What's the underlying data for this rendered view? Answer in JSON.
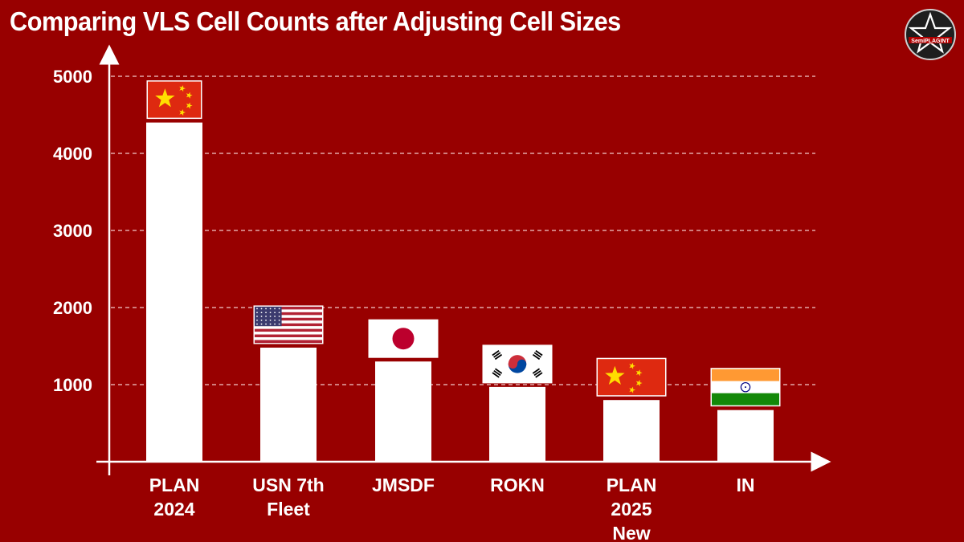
{
  "header": {
    "title": "Comparing VLS Cell Counts after Adjusting Cell Sizes"
  },
  "logo": {
    "text": "SemiPLAGINT"
  },
  "colors": {
    "background": "#980000",
    "bar": "#ffffff",
    "grid": "#f2c9c9"
  },
  "chart_data": {
    "type": "bar",
    "title": "Comparing VLS Cell Counts after Adjusting Cell Sizes",
    "xlabel": "",
    "ylabel": "",
    "ylim": [
      0,
      5000
    ],
    "yticks": [
      1000,
      2000,
      3000,
      4000,
      5000
    ],
    "grid": true,
    "categories": [
      {
        "label_lines": [
          "PLAN",
          "2024"
        ],
        "flag": "china"
      },
      {
        "label_lines": [
          "USN 7th",
          "Fleet"
        ],
        "flag": "usa"
      },
      {
        "label_lines": [
          "JMSDF"
        ],
        "flag": "japan"
      },
      {
        "label_lines": [
          "ROKN"
        ],
        "flag": "korea"
      },
      {
        "label_lines": [
          "PLAN",
          "2025",
          "New"
        ],
        "flag": "china"
      },
      {
        "label_lines": [
          "IN"
        ],
        "flag": "india"
      }
    ],
    "values": [
      4400,
      1480,
      1300,
      970,
      800,
      670
    ]
  }
}
